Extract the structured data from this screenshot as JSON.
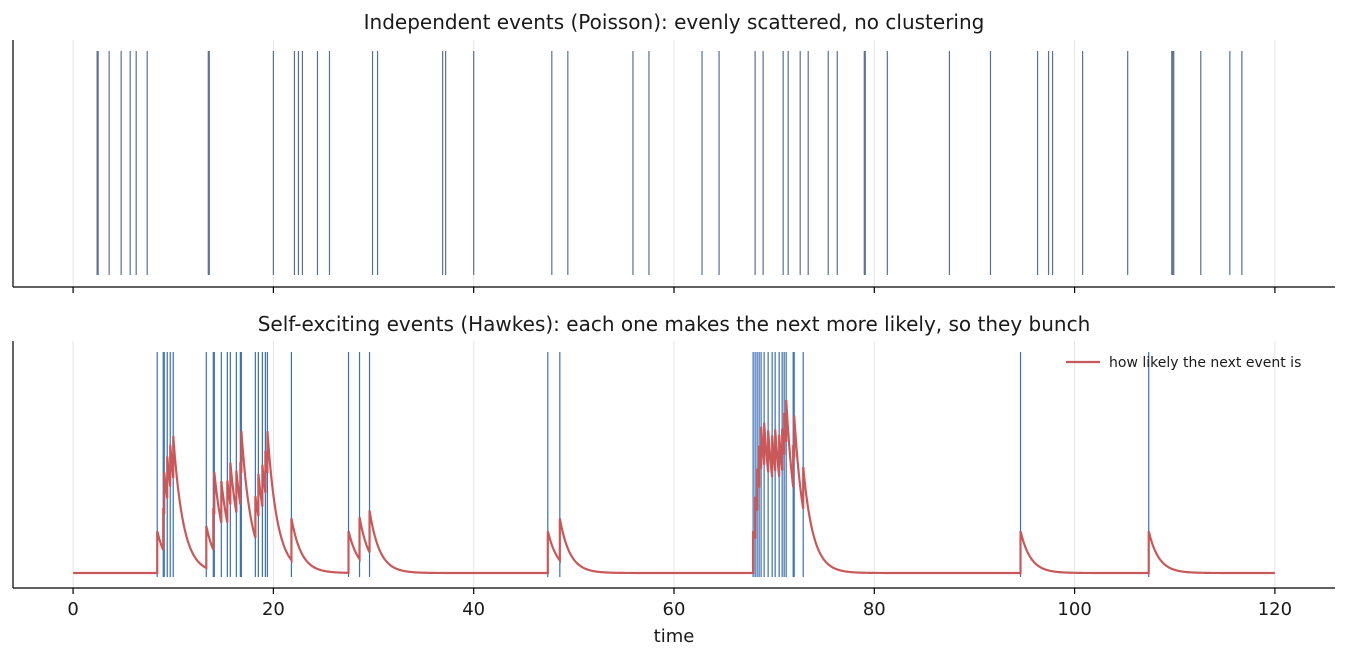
{
  "chart_data": [
    {
      "type": "event_raster",
      "title": "Independent events (Poisson): evenly scattered, no clustering",
      "xlabel": "",
      "ylabel": "",
      "xlim": [
        -6,
        126
      ],
      "grid": "vertical",
      "colors": {
        "events": "#5a6f94",
        "grid": "#e6e6e6",
        "axis": "#000000"
      },
      "series": [
        {
          "values": [
            2.4,
            2.5,
            3.6,
            4.8,
            5.7,
            6.3,
            7.4,
            13.5,
            13.6,
            20.0,
            22.1,
            22.5,
            22.9,
            24.4,
            25.6,
            29.9,
            30.4,
            36.9,
            37.2,
            40.0,
            47.8,
            49.4,
            55.9,
            57.5,
            62.8,
            64.5,
            68.1,
            68.9,
            70.9,
            71.4,
            72.6,
            73.4,
            75.4,
            76.3,
            79.0,
            79.1,
            81.3,
            87.5,
            91.6,
            96.3,
            97.4,
            97.8,
            100.8,
            105.3,
            109.7,
            109.8,
            109.9,
            112.6,
            115.5,
            116.7
          ]
        }
      ]
    },
    {
      "type": "event_raster_with_line",
      "title": "Self-exciting events (Hawkes): each one makes the next more likely, so they bunch",
      "xlabel": "time",
      "ylabel": "",
      "xlim": [
        -6,
        126
      ],
      "xticks": [
        0,
        20,
        40,
        60,
        80,
        100,
        120
      ],
      "grid": "vertical",
      "legend": "top-right",
      "colors": {
        "events": "#3b6fb6",
        "intensity": "#c9585a",
        "grid": "#e6e6e6",
        "axis": "#000000"
      },
      "series": [
        {
          "name": "how likely the next event is",
          "kind": "line",
          "baseline": 0.3,
          "jump": 0.8,
          "decay": 1.0
        },
        {
          "kind": "events",
          "values": [
            8.4,
            9.0,
            9.1,
            9.4,
            9.7,
            10.0,
            13.3,
            14.0,
            14.1,
            14.8,
            15.4,
            15.7,
            16.3,
            16.7,
            16.8,
            18.2,
            18.5,
            18.9,
            19.2,
            19.4,
            21.8,
            27.5,
            28.6,
            29.6,
            47.4,
            48.6,
            67.9,
            68.1,
            68.3,
            68.5,
            68.7,
            69.0,
            69.4,
            69.8,
            70.1,
            70.5,
            70.8,
            71.0,
            71.2,
            71.9,
            72.0,
            72.9,
            94.6,
            107.4
          ]
        }
      ]
    }
  ]
}
